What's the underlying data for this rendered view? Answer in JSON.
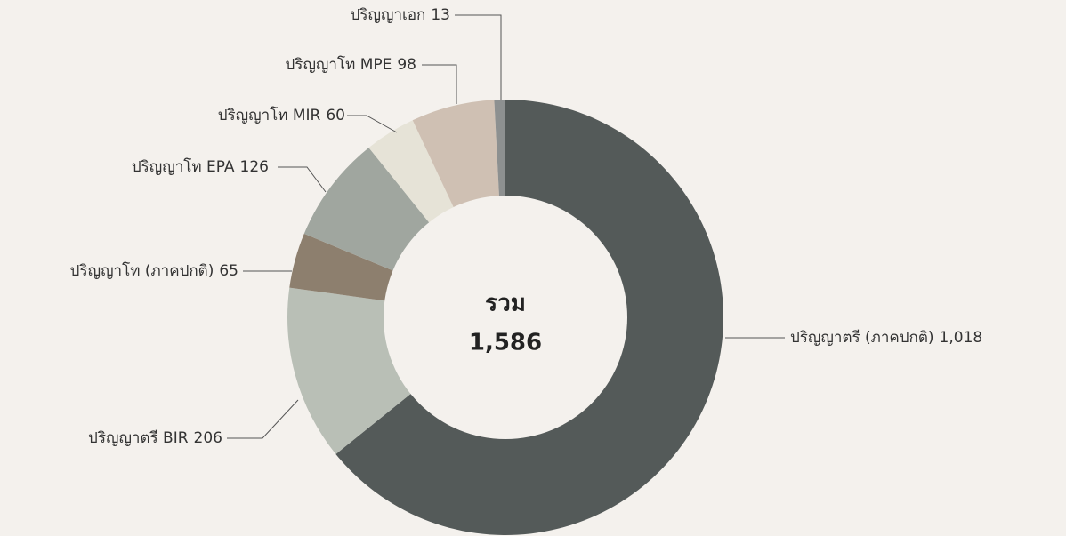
{
  "chart_data": {
    "type": "donut",
    "categories": [
      "ปริญญาตรี (ภาคปกติ)",
      "ปริญญาตรี BIR",
      "ปริญญาโท (ภาคปกติ)",
      "ปริญญาโท EPA",
      "ปริญญาโท MIR",
      "ปริญญาโท MPE",
      "ปริญญาเอก"
    ],
    "values": [
      1018,
      206,
      65,
      126,
      60,
      98,
      13
    ],
    "value_labels": [
      "1,018",
      "206",
      "65",
      "126",
      "60",
      "98",
      "13"
    ],
    "colors": [
      "#545a59",
      "#b9bfb6",
      "#8d7f6e",
      "#a0a69f",
      "#e6e3d7",
      "#cfc0b3",
      "#8d9090"
    ],
    "center_title": "รวม",
    "center_total": "1,586"
  }
}
